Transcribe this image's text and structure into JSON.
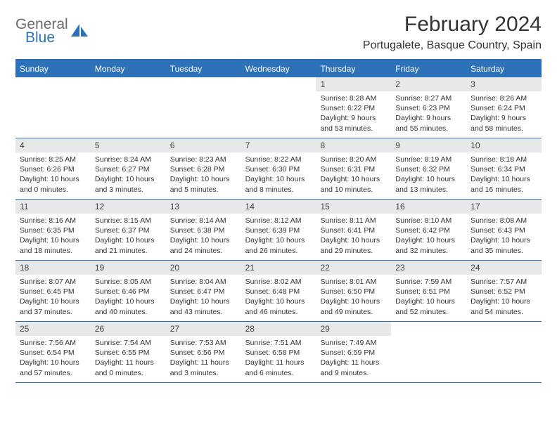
{
  "brand": {
    "word1": "General",
    "word2": "Blue"
  },
  "title": "February 2024",
  "location": "Portugalete, Basque Country, Spain",
  "colors": {
    "accent": "#2d71b8",
    "header_text": "#ffffff",
    "daybar_bg": "#e7e8e9",
    "text": "#333333",
    "logo_gray": "#6b6b6b"
  },
  "weekdays": [
    "Sunday",
    "Monday",
    "Tuesday",
    "Wednesday",
    "Thursday",
    "Friday",
    "Saturday"
  ],
  "weeks": [
    [
      null,
      null,
      null,
      null,
      {
        "n": "1",
        "sunrise": "8:28 AM",
        "sunset": "6:22 PM",
        "daylight": "9 hours and 53 minutes."
      },
      {
        "n": "2",
        "sunrise": "8:27 AM",
        "sunset": "6:23 PM",
        "daylight": "9 hours and 55 minutes."
      },
      {
        "n": "3",
        "sunrise": "8:26 AM",
        "sunset": "6:24 PM",
        "daylight": "9 hours and 58 minutes."
      }
    ],
    [
      {
        "n": "4",
        "sunrise": "8:25 AM",
        "sunset": "6:26 PM",
        "daylight": "10 hours and 0 minutes."
      },
      {
        "n": "5",
        "sunrise": "8:24 AM",
        "sunset": "6:27 PM",
        "daylight": "10 hours and 3 minutes."
      },
      {
        "n": "6",
        "sunrise": "8:23 AM",
        "sunset": "6:28 PM",
        "daylight": "10 hours and 5 minutes."
      },
      {
        "n": "7",
        "sunrise": "8:22 AM",
        "sunset": "6:30 PM",
        "daylight": "10 hours and 8 minutes."
      },
      {
        "n": "8",
        "sunrise": "8:20 AM",
        "sunset": "6:31 PM",
        "daylight": "10 hours and 10 minutes."
      },
      {
        "n": "9",
        "sunrise": "8:19 AM",
        "sunset": "6:32 PM",
        "daylight": "10 hours and 13 minutes."
      },
      {
        "n": "10",
        "sunrise": "8:18 AM",
        "sunset": "6:34 PM",
        "daylight": "10 hours and 16 minutes."
      }
    ],
    [
      {
        "n": "11",
        "sunrise": "8:16 AM",
        "sunset": "6:35 PM",
        "daylight": "10 hours and 18 minutes."
      },
      {
        "n": "12",
        "sunrise": "8:15 AM",
        "sunset": "6:37 PM",
        "daylight": "10 hours and 21 minutes."
      },
      {
        "n": "13",
        "sunrise": "8:14 AM",
        "sunset": "6:38 PM",
        "daylight": "10 hours and 24 minutes."
      },
      {
        "n": "14",
        "sunrise": "8:12 AM",
        "sunset": "6:39 PM",
        "daylight": "10 hours and 26 minutes."
      },
      {
        "n": "15",
        "sunrise": "8:11 AM",
        "sunset": "6:41 PM",
        "daylight": "10 hours and 29 minutes."
      },
      {
        "n": "16",
        "sunrise": "8:10 AM",
        "sunset": "6:42 PM",
        "daylight": "10 hours and 32 minutes."
      },
      {
        "n": "17",
        "sunrise": "8:08 AM",
        "sunset": "6:43 PM",
        "daylight": "10 hours and 35 minutes."
      }
    ],
    [
      {
        "n": "18",
        "sunrise": "8:07 AM",
        "sunset": "6:45 PM",
        "daylight": "10 hours and 37 minutes."
      },
      {
        "n": "19",
        "sunrise": "8:05 AM",
        "sunset": "6:46 PM",
        "daylight": "10 hours and 40 minutes."
      },
      {
        "n": "20",
        "sunrise": "8:04 AM",
        "sunset": "6:47 PM",
        "daylight": "10 hours and 43 minutes."
      },
      {
        "n": "21",
        "sunrise": "8:02 AM",
        "sunset": "6:48 PM",
        "daylight": "10 hours and 46 minutes."
      },
      {
        "n": "22",
        "sunrise": "8:01 AM",
        "sunset": "6:50 PM",
        "daylight": "10 hours and 49 minutes."
      },
      {
        "n": "23",
        "sunrise": "7:59 AM",
        "sunset": "6:51 PM",
        "daylight": "10 hours and 52 minutes."
      },
      {
        "n": "24",
        "sunrise": "7:57 AM",
        "sunset": "6:52 PM",
        "daylight": "10 hours and 54 minutes."
      }
    ],
    [
      {
        "n": "25",
        "sunrise": "7:56 AM",
        "sunset": "6:54 PM",
        "daylight": "10 hours and 57 minutes."
      },
      {
        "n": "26",
        "sunrise": "7:54 AM",
        "sunset": "6:55 PM",
        "daylight": "11 hours and 0 minutes."
      },
      {
        "n": "27",
        "sunrise": "7:53 AM",
        "sunset": "6:56 PM",
        "daylight": "11 hours and 3 minutes."
      },
      {
        "n": "28",
        "sunrise": "7:51 AM",
        "sunset": "6:58 PM",
        "daylight": "11 hours and 6 minutes."
      },
      {
        "n": "29",
        "sunrise": "7:49 AM",
        "sunset": "6:59 PM",
        "daylight": "11 hours and 9 minutes."
      },
      null,
      null
    ]
  ],
  "labels": {
    "sunrise": "Sunrise:",
    "sunset": "Sunset:",
    "daylight": "Daylight:"
  }
}
